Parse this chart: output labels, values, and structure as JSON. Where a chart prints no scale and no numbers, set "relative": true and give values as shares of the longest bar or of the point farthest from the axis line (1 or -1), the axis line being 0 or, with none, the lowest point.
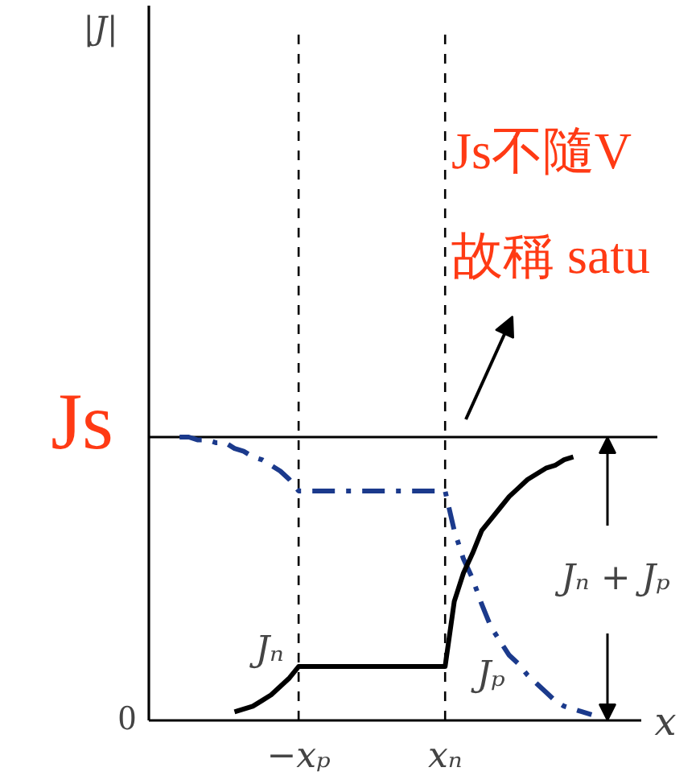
{
  "chart_data": {
    "type": "line",
    "relative": true,
    "xlabel": "x",
    "annotations": [
      "|J|",
      "Js不隨V",
      "故稱 satu",
      "Jₙ + Jₚ",
      "0"
    ],
    "categories": [
      null,
      null,
      null,
      null,
      null,
      null,
      null,
      null,
      null,
      null,
      null,
      null,
      null,
      "−xₚ",
      null,
      null,
      null,
      null,
      null,
      null,
      null,
      null,
      null,
      null,
      null,
      null,
      null,
      null,
      null,
      "xₙ",
      null,
      null,
      null,
      null,
      null,
      null,
      null,
      null,
      null,
      null,
      null,
      null,
      null,
      null,
      null,
      null
    ],
    "series": [
      {
        "name": "Jₚ",
        "color": "#1b3a8c",
        "line_style": "dashdot",
        "values": [
          1.0,
          1.0,
          0.99,
          0.99,
          0.98,
          0.98,
          0.96,
          0.95,
          0.93,
          0.92,
          0.9,
          0.88,
          0.85,
          0.81,
          0.81,
          0.81,
          0.81,
          0.81,
          0.81,
          0.81,
          0.81,
          0.81,
          0.81,
          0.81,
          0.81,
          0.81,
          0.81,
          0.81,
          0.81,
          0.81,
          0.67,
          0.57,
          0.5,
          0.41,
          0.33,
          0.28,
          0.23,
          0.2,
          0.16,
          0.13,
          0.1,
          0.07,
          0.05,
          0.04,
          0.03,
          0.02
        ]
      },
      {
        "name": "Jₙ",
        "color": "#000000",
        "line_style": "solid",
        "values": [
          null,
          null,
          null,
          null,
          null,
          null,
          0.03,
          0.04,
          0.05,
          0.07,
          0.09,
          0.12,
          0.15,
          0.19,
          0.19,
          0.19,
          0.19,
          0.19,
          0.19,
          0.19,
          0.19,
          0.19,
          0.19,
          0.19,
          0.19,
          0.19,
          0.19,
          0.19,
          0.19,
          0.19,
          0.42,
          0.52,
          0.59,
          0.67,
          0.71,
          0.75,
          0.79,
          0.82,
          0.85,
          0.87,
          0.89,
          0.9,
          0.92,
          0.93,
          null,
          null
        ]
      }
    ],
    "ref_lines": [
      {
        "axis": "y",
        "value": 1,
        "label": "Js",
        "color": "#000000",
        "line_style": "solid"
      },
      {
        "axis": "x",
        "value": "−xₚ",
        "color": "#000000",
        "line_style": "dashed"
      },
      {
        "axis": "x",
        "value": "xₙ",
        "color": "#000000",
        "line_style": "dashed"
      }
    ]
  }
}
